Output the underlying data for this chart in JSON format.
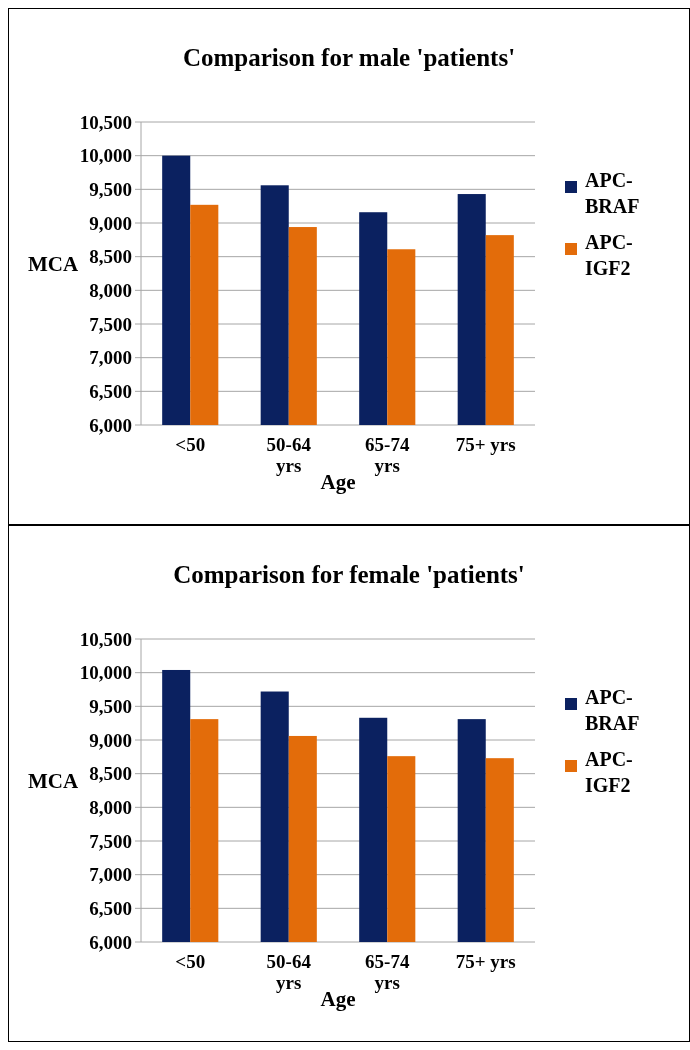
{
  "chart_data": [
    {
      "type": "bar",
      "title": "Comparison for male 'patients'",
      "xlabel": "Age",
      "ylabel": "MCA",
      "categories": [
        "<50",
        "50-64 yrs",
        "65-74 yrs",
        "75+ yrs"
      ],
      "series": [
        {
          "name": "APC-BRAF",
          "color": "#0b2160",
          "values": [
            10000,
            9560,
            9160,
            9430
          ]
        },
        {
          "name": "APC-IGF2",
          "color": "#e36c0a",
          "values": [
            9270,
            8940,
            8610,
            8820
          ]
        }
      ],
      "ylim": [
        6000,
        10500
      ],
      "yticks": [
        {
          "value": 6000,
          "label": "6,000"
        },
        {
          "value": 6500,
          "label": "6,500"
        },
        {
          "value": 7000,
          "label": "7,000"
        },
        {
          "value": 7500,
          "label": "7,500"
        },
        {
          "value": 8000,
          "label": "8,000"
        },
        {
          "value": 8500,
          "label": "8,500"
        },
        {
          "value": 9000,
          "label": "9,000"
        },
        {
          "value": 9500,
          "label": "9,500"
        },
        {
          "value": 10000,
          "label": "10,000"
        },
        {
          "value": 10500,
          "label": "10,500"
        }
      ],
      "grid": "y",
      "legend": "right"
    },
    {
      "type": "bar",
      "title": "Comparison for female 'patients'",
      "xlabel": "Age",
      "ylabel": "MCA",
      "categories": [
        "<50",
        "50-64 yrs",
        "65-74 yrs",
        "75+ yrs"
      ],
      "series": [
        {
          "name": "APC-BRAF",
          "color": "#0b2160",
          "values": [
            10040,
            9720,
            9330,
            9310
          ]
        },
        {
          "name": "APC-IGF2",
          "color": "#e36c0a",
          "values": [
            9310,
            9060,
            8760,
            8730
          ]
        }
      ],
      "ylim": [
        6000,
        10500
      ],
      "yticks": [
        {
          "value": 6000,
          "label": "6,000"
        },
        {
          "value": 6500,
          "label": "6,500"
        },
        {
          "value": 7000,
          "label": "7,000"
        },
        {
          "value": 7500,
          "label": "7,500"
        },
        {
          "value": 8000,
          "label": "8,000"
        },
        {
          "value": 8500,
          "label": "8,500"
        },
        {
          "value": 9000,
          "label": "9,000"
        },
        {
          "value": 9500,
          "label": "9,500"
        },
        {
          "value": 10000,
          "label": "10,000"
        },
        {
          "value": 10500,
          "label": "10,500"
        }
      ],
      "grid": "y",
      "legend": "right"
    }
  ]
}
